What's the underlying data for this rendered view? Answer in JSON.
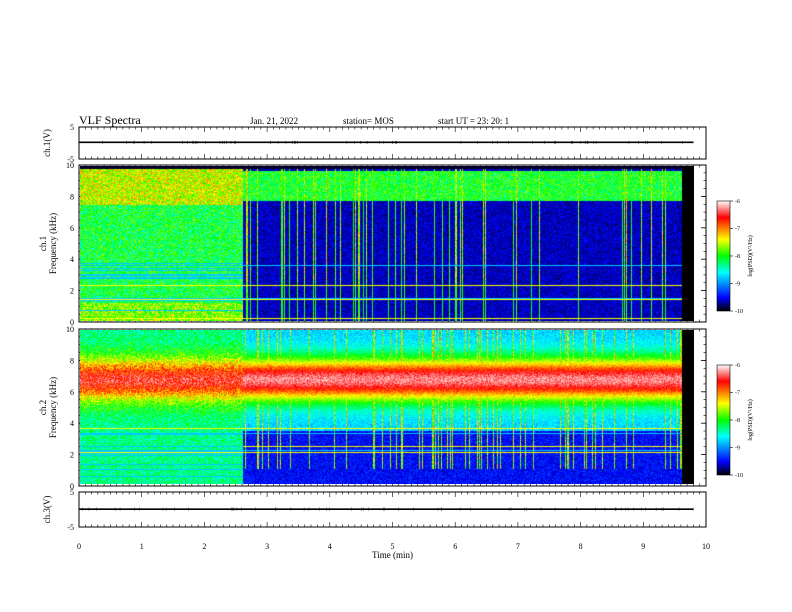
{
  "header": {
    "title": "VLF Spectra",
    "date": "Jan. 21, 2022",
    "station": "station= MOS",
    "start": "start  UT =   23: 20: 1"
  },
  "chart_data": [
    {
      "type": "line",
      "name": "ch1_waveform",
      "ylabel": "ch.1(V)",
      "ylim": [
        -5,
        5
      ],
      "yticks": [
        "5",
        "-5"
      ],
      "xlim": [
        0,
        10
      ],
      "x": [
        0,
        9.8
      ],
      "y": [
        0.2,
        0.2
      ]
    },
    {
      "type": "heatmap",
      "name": "ch1_spectrogram",
      "ylabel": "ch.1\nFrequency (kHz)",
      "ylim": [
        0,
        10
      ],
      "yticks": [
        "0",
        "2",
        "4",
        "6",
        "8",
        "10"
      ],
      "xlim": [
        0,
        10
      ],
      "data_end_min": 9.8,
      "colorbar": {
        "label": "log(PSD)(V²/Hz)",
        "range": [
          -10,
          -6
        ],
        "ticks": [
          "-6",
          "-7",
          "-8",
          "-9",
          "-10"
        ]
      }
    },
    {
      "type": "heatmap",
      "name": "ch2_spectrogram",
      "ylabel": "ch.2\nFrequency (kHz)",
      "ylim": [
        0,
        10
      ],
      "yticks": [
        "0",
        "2",
        "4",
        "6",
        "8",
        "10"
      ],
      "xlim": [
        0,
        10
      ],
      "data_end_min": 9.8,
      "colorbar": {
        "label": "log(PSD)(V²/Hz)",
        "range": [
          -10,
          -6
        ],
        "ticks": [
          "-6",
          "-7",
          "-8",
          "-9",
          "-10"
        ]
      }
    },
    {
      "type": "line",
      "name": "ch3_waveform",
      "ylabel": "ch.3(V)",
      "ylim": [
        -5,
        5
      ],
      "yticks": [
        "5",
        "-5"
      ],
      "xlim": [
        0,
        10
      ],
      "x": [
        0,
        9.8
      ],
      "y": [
        0.1,
        0.1
      ]
    }
  ],
  "xaxis": {
    "label": "Time (min)",
    "ticks": [
      "0",
      "1",
      "2",
      "3",
      "4",
      "5",
      "6",
      "7",
      "8",
      "9",
      "10"
    ]
  },
  "colors": {
    "colormap": [
      "#ffffff",
      "#ff0000",
      "#ffff00",
      "#00ff00",
      "#00ffff",
      "#0000ff",
      "#000000"
    ]
  }
}
